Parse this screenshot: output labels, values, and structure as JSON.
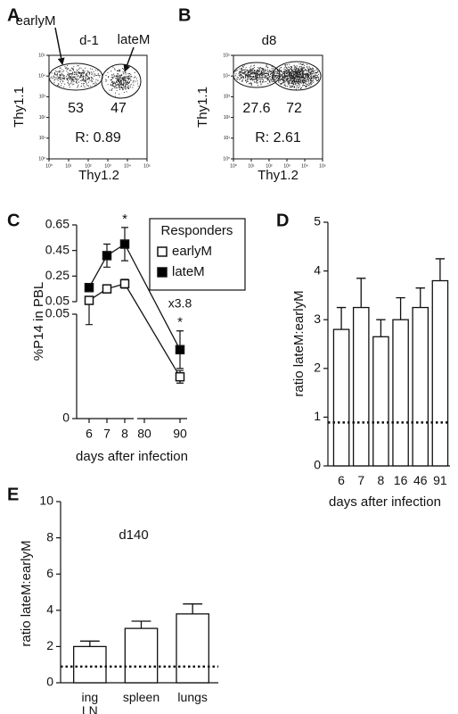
{
  "chart_data": [
    {
      "type": "dotplot",
      "panel": "A",
      "title": "d-1",
      "xlabel": "Thy1.2",
      "ylabel": "Thy1.1",
      "scale": "log",
      "xlim": [
        1,
        100000
      ],
      "ylim": [
        1,
        100000
      ],
      "xticks": [
        {
          "value": 1,
          "label": "10⁰"
        },
        {
          "value": 10,
          "label": "10¹"
        },
        {
          "value": 100,
          "label": "10²"
        },
        {
          "value": 1000,
          "label": "10³"
        },
        {
          "value": 10000,
          "label": "10⁴"
        },
        {
          "value": 100000,
          "label": "10⁵"
        }
      ],
      "yticks": [
        {
          "value": 1,
          "label": "10⁰"
        },
        {
          "value": 10,
          "label": "10¹"
        },
        {
          "value": 100,
          "label": "10²"
        },
        {
          "value": 1000,
          "label": "10³"
        },
        {
          "value": 10000,
          "label": "10⁴"
        },
        {
          "value": 100000,
          "label": "10⁵"
        }
      ],
      "gates": [
        {
          "label": "earlyM",
          "percent": 53
        },
        {
          "label": "lateM",
          "percent": 47
        }
      ],
      "ratio_label": "R: 0.89"
    },
    {
      "type": "dotplot",
      "panel": "B",
      "title": "d8",
      "xlabel": "Thy1.2",
      "ylabel": "Thy1.1",
      "scale": "log",
      "xlim": [
        1,
        100000
      ],
      "ylim": [
        1,
        100000
      ],
      "xticks": [
        {
          "value": 1,
          "label": "10⁰"
        },
        {
          "value": 10,
          "label": "10¹"
        },
        {
          "value": 100,
          "label": "10²"
        },
        {
          "value": 1000,
          "label": "10³"
        },
        {
          "value": 10000,
          "label": "10⁴"
        },
        {
          "value": 100000,
          "label": "10⁵"
        }
      ],
      "yticks": [
        {
          "value": 1,
          "label": "10⁰"
        },
        {
          "value": 10,
          "label": "10¹"
        },
        {
          "value": 100,
          "label": "10²"
        },
        {
          "value": 1000,
          "label": "10³"
        },
        {
          "value": 10000,
          "label": "10⁴"
        },
        {
          "value": 100000,
          "label": "10⁵"
        }
      ],
      "gates": [
        {
          "percent": 27.6
        },
        {
          "percent": 72
        }
      ],
      "ratio_label": "R: 2.61"
    },
    {
      "type": "line",
      "panel": "C",
      "xlabel": "days after infection",
      "ylabel": "%P14 in PBL",
      "x": [
        6,
        7,
        8,
        90
      ],
      "xlim": [
        5.3,
        92
      ],
      "xbreak": [
        8.5,
        78
      ],
      "xticks": [
        6,
        7,
        8,
        80,
        90
      ],
      "ylim": [
        0,
        0.65
      ],
      "ybreak": 0.05,
      "yticks": [
        0,
        0.05,
        0.25,
        0.45,
        0.65
      ],
      "legend": "top-right",
      "legend_title": "Responders",
      "series": [
        {
          "name": "earlyM",
          "color": "#ffffff",
          "values": [
            0.06,
            0.15,
            0.19,
            0.02
          ],
          "errors": [
            0.015,
            0.03,
            0.035,
            0.003
          ]
        },
        {
          "name": "lateM",
          "color": "#000000",
          "values": [
            0.16,
            0.41,
            0.5,
            0.033
          ],
          "errors": [
            0.03,
            0.09,
            0.13,
            0.009
          ]
        }
      ],
      "annotations": [
        {
          "text": "*",
          "x": 8
        },
        {
          "text": "*",
          "x": 90
        },
        {
          "text": "x3.8",
          "x": 90
        }
      ]
    },
    {
      "type": "bar",
      "panel": "D",
      "xlabel": "days after infection",
      "ylabel": "ratio lateM:earlyM",
      "categories": [
        "6",
        "7",
        "8",
        "16",
        "46",
        "91"
      ],
      "values": [
        2.8,
        3.25,
        2.65,
        3.0,
        3.25,
        3.8
      ],
      "errors": [
        0.45,
        0.6,
        0.35,
        0.45,
        0.4,
        0.45
      ],
      "color": "#ffffff",
      "ylim": [
        0,
        5
      ],
      "yticks": [
        0,
        1,
        2,
        3,
        4,
        5
      ],
      "reference_line": 0.89
    },
    {
      "type": "bar",
      "panel": "E",
      "title": "d140",
      "ylabel": "ratio lateM:earlyM",
      "categories": [
        "ing\nLN",
        "spleen",
        "lungs"
      ],
      "values": [
        2.0,
        3.0,
        3.8
      ],
      "errors": [
        0.3,
        0.4,
        0.55
      ],
      "color": "#ffffff",
      "ylim": [
        0,
        10
      ],
      "yticks": [
        0,
        2,
        4,
        6,
        8,
        10
      ],
      "reference_line": 0.89
    }
  ]
}
